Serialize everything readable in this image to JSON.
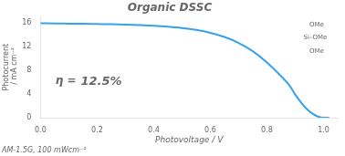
{
  "chart_data": {
    "type": "line",
    "title": "Organic DSSC",
    "xlabel": "Photovoltage / V",
    "ylabel": "Photocurrent\n / mA cm⁻²",
    "footnote": "AM-1.5G, 100 mWcm⁻²",
    "annotations": [
      "η =",
      "12.5%",
      "OMe",
      "Si–OMe",
      "OMe"
    ],
    "x": [
      0.0,
      0.05,
      0.1,
      0.15,
      0.2,
      0.25,
      0.3,
      0.35,
      0.4,
      0.45,
      0.5,
      0.55,
      0.6,
      0.65,
      0.7,
      0.75,
      0.8,
      0.85,
      0.88,
      0.9,
      0.92,
      0.94,
      0.96,
      0.98,
      1.0,
      1.02
    ],
    "values": [
      15.9,
      15.88,
      15.85,
      15.82,
      15.78,
      15.74,
      15.68,
      15.6,
      15.48,
      15.32,
      15.1,
      14.78,
      14.3,
      13.6,
      12.6,
      11.2,
      9.3,
      7.0,
      5.4,
      3.9,
      2.6,
      1.5,
      0.7,
      0.2,
      0.0,
      0.0
    ],
    "xlim": [
      0,
      1.05
    ],
    "ylim": [
      0,
      17
    ],
    "xticks": [
      {
        "value": 0,
        "label": "0.0"
      },
      0.2,
      0.4,
      0.6,
      0.8,
      {
        "value": 1.0,
        "label": "1.0"
      }
    ],
    "yticks": [
      0,
      4,
      8,
      12,
      16
    ],
    "grid": false
  }
}
